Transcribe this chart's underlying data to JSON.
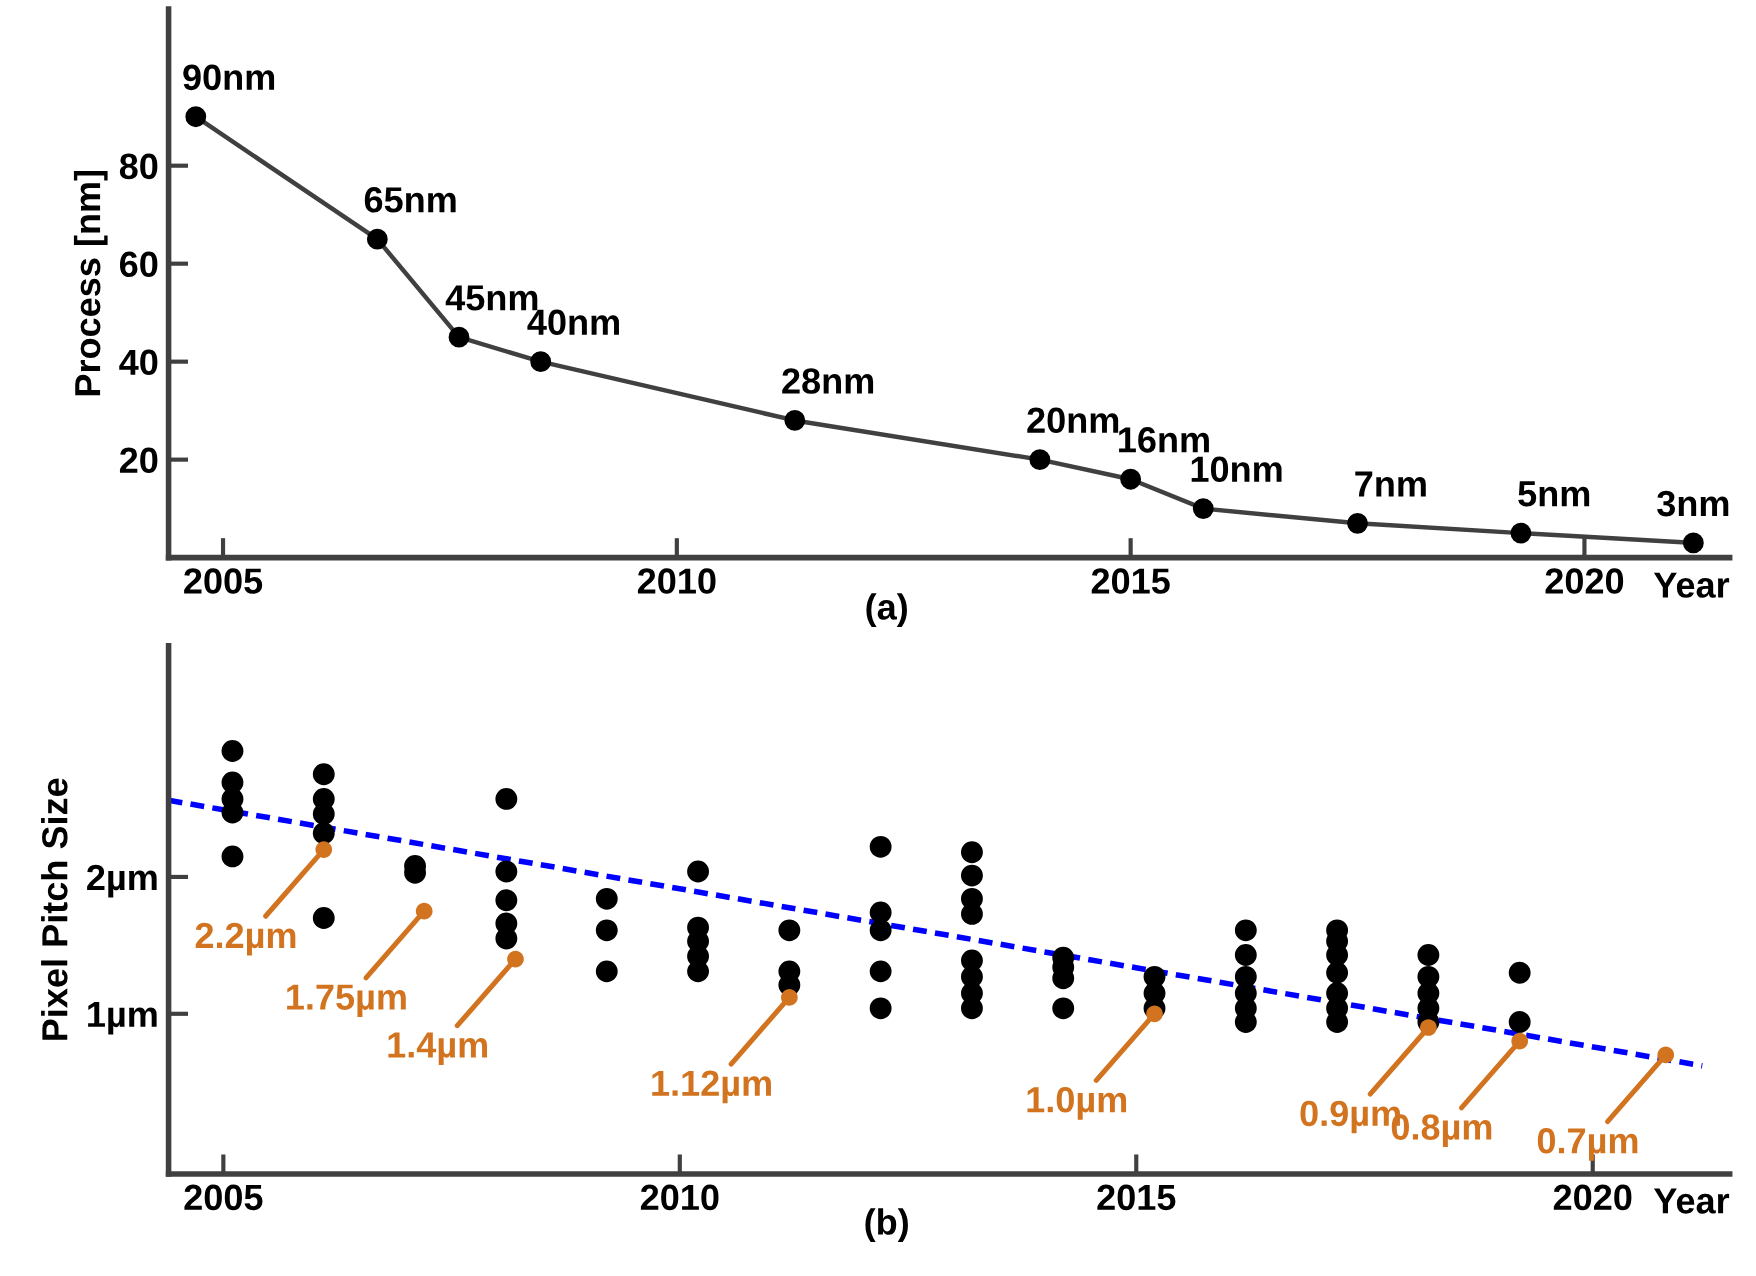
{
  "chart_data": [
    {
      "type": "line",
      "x": [
        2004.7,
        2006.7,
        2007.6,
        2008.5,
        2011.3,
        2014.0,
        2015.0,
        2015.8,
        2017.5,
        2019.3,
        2021.2
      ],
      "values": [
        90,
        65,
        45,
        40,
        28,
        20,
        16,
        10,
        7,
        5,
        3
      ],
      "value_labels": [
        "90nm",
        "65nm",
        "45nm",
        "40nm",
        "28nm",
        "20nm",
        "16nm",
        "10nm",
        "7nm",
        "5nm",
        "3nm"
      ],
      "color": "#404040",
      "marker": "circle",
      "line_style": "solid",
      "xlim": [
        2004.4,
        2021.6
      ],
      "ylim": [
        0,
        112
      ],
      "xticks": [
        2005,
        2010,
        2015,
        2020
      ],
      "yticks": [
        20,
        40,
        60,
        80
      ],
      "xlabel": "Year",
      "ylabel": "Process [nm]",
      "annotations": [
        "(a)"
      ],
      "grid": false
    },
    {
      "type": "scatter",
      "series": [
        {
          "type": "scatter",
          "color": "#000000",
          "marker": "circle",
          "x": [
            2005.1,
            2005.1,
            2005.1,
            2005.1,
            2005.1,
            2006.1,
            2006.1,
            2006.1,
            2006.1,
            2006.1,
            2007.1,
            2007.1,
            2008.1,
            2008.1,
            2008.1,
            2008.1,
            2008.1,
            2009.2,
            2009.2,
            2009.2,
            2010.2,
            2010.2,
            2010.2,
            2010.2,
            2010.2,
            2011.2,
            2011.2,
            2011.2,
            2012.2,
            2012.2,
            2012.2,
            2012.2,
            2012.2,
            2013.2,
            2013.2,
            2013.2,
            2013.2,
            2013.2,
            2013.2,
            2013.2,
            2013.2,
            2014.2,
            2014.2,
            2014.2,
            2014.2,
            2015.2,
            2015.2,
            2015.2,
            2016.2,
            2016.2,
            2016.2,
            2016.2,
            2016.2,
            2016.2,
            2017.2,
            2017.2,
            2017.2,
            2017.2,
            2017.2,
            2017.2,
            2017.2,
            2018.2,
            2018.2,
            2018.2,
            2018.2,
            2018.2,
            2019.2,
            2019.2
          ],
          "values": [
            2.92,
            2.69,
            2.57,
            2.47,
            2.15,
            2.75,
            2.57,
            2.46,
            2.32,
            1.7,
            2.08,
            2.03,
            2.57,
            2.04,
            1.83,
            1.66,
            1.55,
            1.84,
            1.61,
            1.31,
            2.04,
            1.63,
            1.53,
            1.42,
            1.31,
            1.61,
            1.31,
            1.21,
            2.22,
            1.74,
            1.61,
            1.31,
            1.04,
            2.18,
            2.01,
            1.84,
            1.73,
            1.39,
            1.27,
            1.15,
            1.04,
            1.41,
            1.34,
            1.26,
            1.04,
            1.27,
            1.15,
            1.04,
            1.61,
            1.43,
            1.27,
            1.15,
            1.04,
            0.94,
            1.61,
            1.53,
            1.43,
            1.3,
            1.15,
            1.04,
            0.94,
            1.43,
            1.27,
            1.15,
            1.04,
            0.94,
            1.3,
            0.94
          ]
        },
        {
          "type": "scatter",
          "color": "#d2731f",
          "marker": "circle",
          "x": [
            2006.1,
            2007.2,
            2008.2,
            2011.2,
            2015.2,
            2018.2,
            2019.2,
            2020.8
          ],
          "values": [
            2.2,
            1.75,
            1.4,
            1.12,
            1.0,
            0.9,
            0.8,
            0.7
          ],
          "value_labels": [
            "2.2µm",
            "1.75µm",
            "1.4µm",
            "1.12µm",
            "1.0µm",
            "0.9µm",
            "0.8µm",
            "0.7µm"
          ]
        },
        {
          "type": "line",
          "color": "#0000ff",
          "line_style": "dashed",
          "marker": "none",
          "x": [
            2004.4,
            2021.2
          ],
          "values": [
            2.56,
            0.62
          ]
        }
      ],
      "xlim": [
        2004.4,
        2021.5
      ],
      "ylim": [
        -0.17,
        3.69
      ],
      "xticks": [
        2005,
        2010,
        2015,
        2020
      ],
      "yticks": [
        {
          "value": 1,
          "label": "1µm"
        },
        {
          "value": 2,
          "label": "2µm"
        }
      ],
      "xlabel": "Year",
      "ylabel": "Pixel Pitch Size",
      "annotations": [
        "(b)"
      ],
      "grid": false
    }
  ]
}
